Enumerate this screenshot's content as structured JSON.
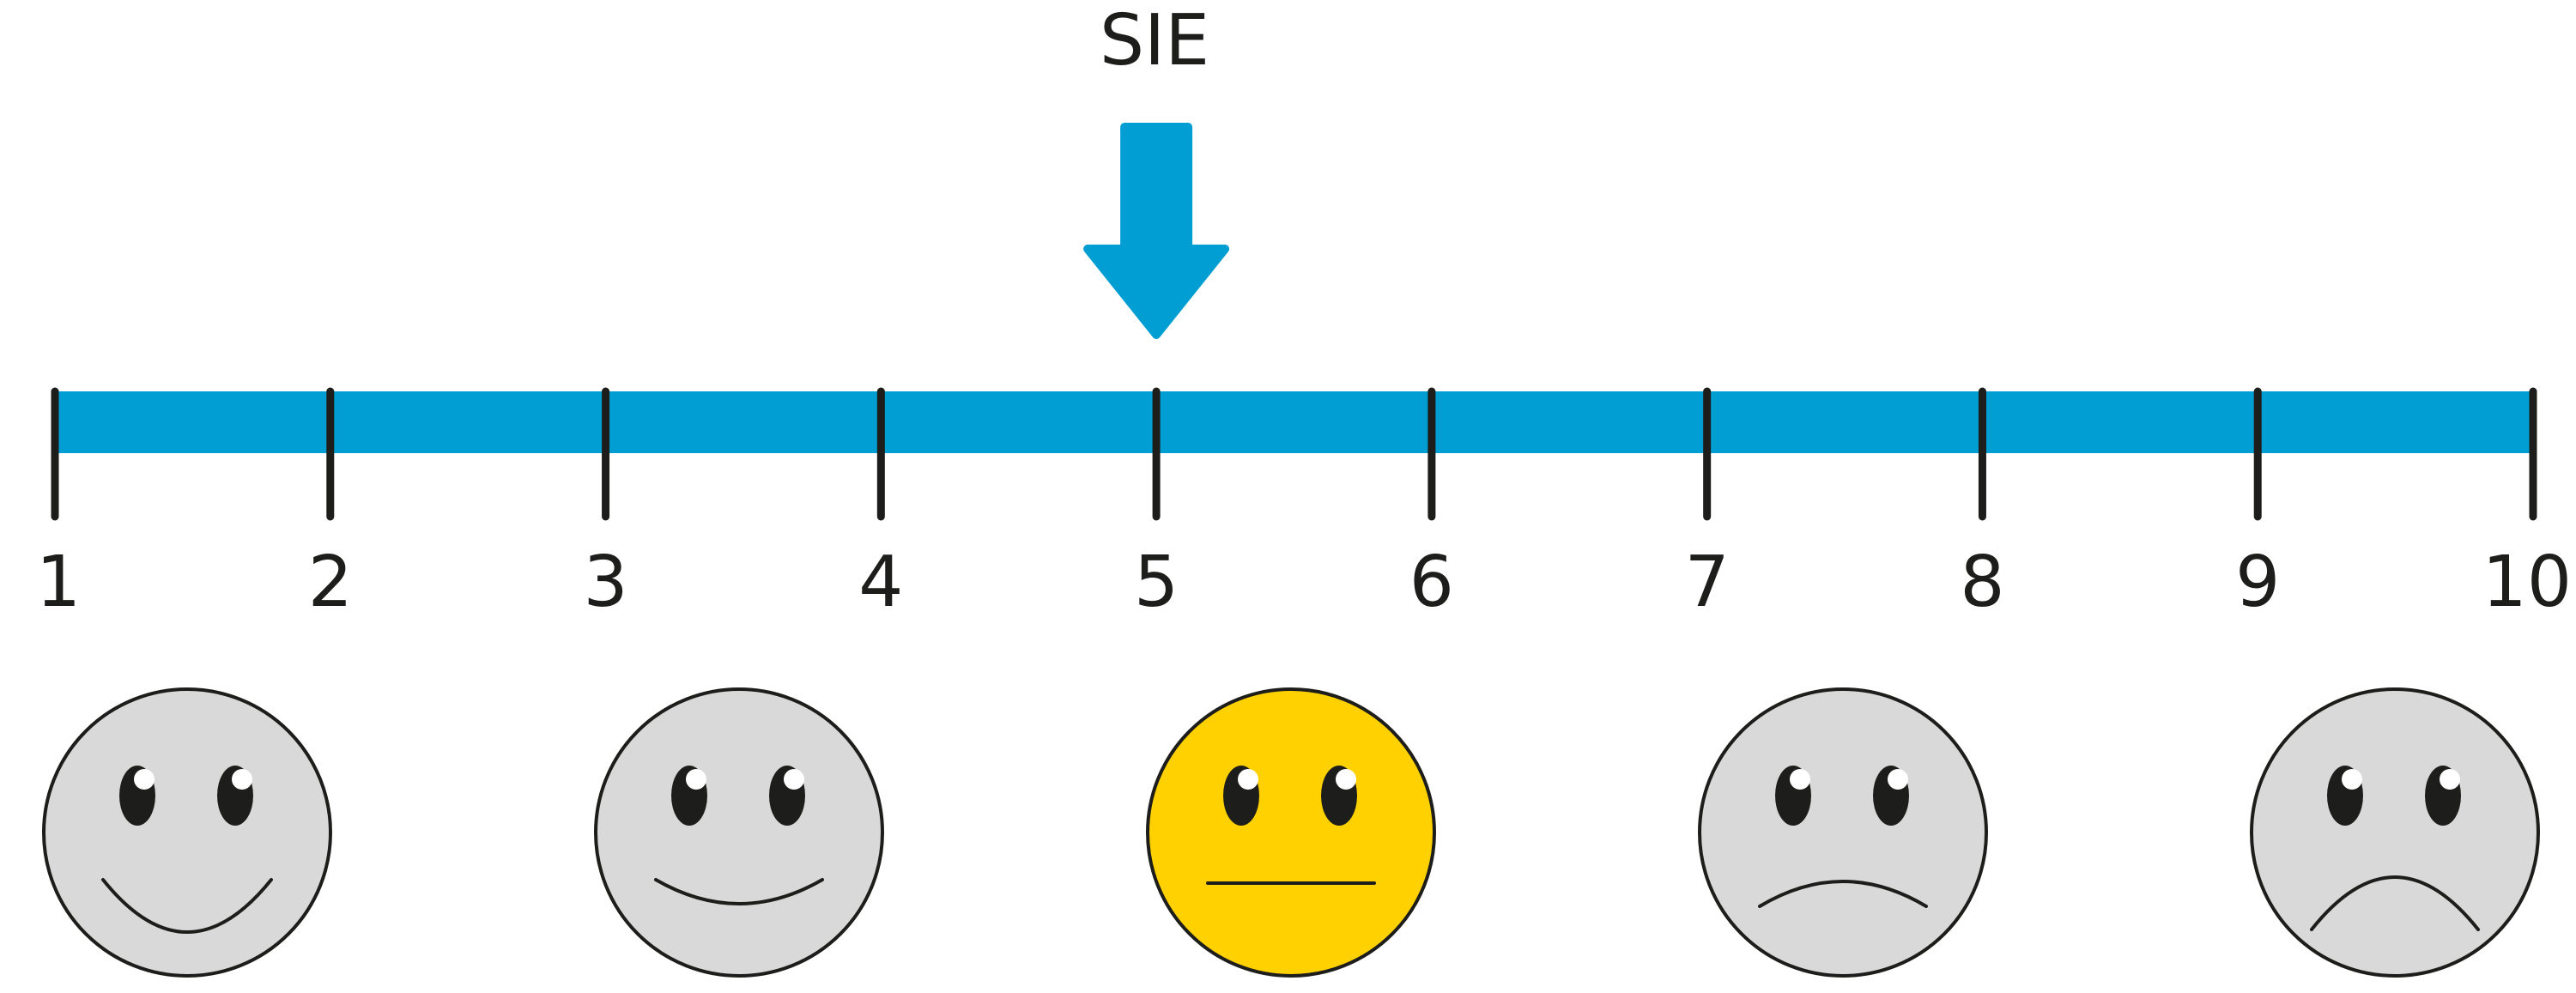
{
  "marker": {
    "label": "SIE",
    "position": 5
  },
  "scale": {
    "min": 1,
    "max": 10,
    "ticks": [
      "1",
      "2",
      "3",
      "4",
      "5",
      "6",
      "7",
      "8",
      "9",
      "10"
    ]
  },
  "faces": [
    {
      "name": "very-happy-face-icon",
      "mood": "very-happy",
      "highlighted": false
    },
    {
      "name": "happy-face-icon",
      "mood": "happy",
      "highlighted": false
    },
    {
      "name": "neutral-face-icon",
      "mood": "neutral",
      "highlighted": true
    },
    {
      "name": "sad-face-icon",
      "mood": "sad",
      "highlighted": false
    },
    {
      "name": "very-sad-face-icon",
      "mood": "very-sad",
      "highlighted": false
    }
  ],
  "colors": {
    "bar": "#009ed2",
    "arrow": "#009ed2",
    "tick": "#1d1d1b",
    "face_default": "#d9d9d9",
    "face_highlight": "#ffd100",
    "outline": "#1d1d1b",
    "eye": "#1d1d1b",
    "eye_highlight": "#ffffff"
  }
}
